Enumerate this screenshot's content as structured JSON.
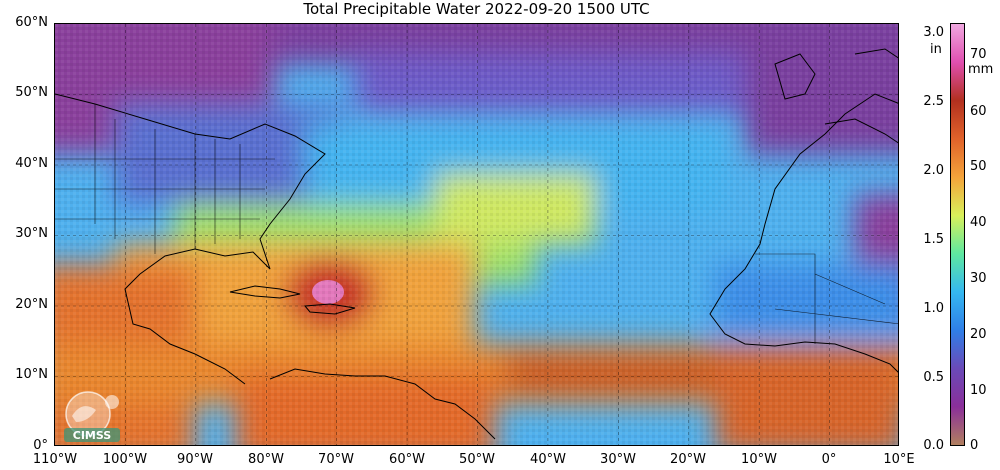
{
  "title": "Total Precipitable Water  2022-09-20 1500 UTC",
  "map": {
    "lat_labels": [
      "60°N",
      "50°N",
      "40°N",
      "30°N",
      "20°N",
      "10°N",
      "0°"
    ],
    "lon_labels": [
      "110°W",
      "100°W",
      "90°W",
      "80°W",
      "70°W",
      "60°W",
      "50°W",
      "40°W",
      "30°W",
      "20°W",
      "10°W",
      "0°",
      "10°E"
    ],
    "lat_range": [
      0,
      60
    ],
    "lon_range": [
      -110,
      10
    ],
    "gridlines": true
  },
  "colorbar": {
    "inch_ticks": [
      "3.0",
      "2.5",
      "2.0",
      "1.5",
      "1.0",
      "0.5",
      "0.0"
    ],
    "inch_unit": "in",
    "mm_ticks": [
      "70",
      "60",
      "50",
      "40",
      "30",
      "20",
      "10",
      "0"
    ],
    "mm_unit": "mm",
    "range_mm": [
      0,
      76
    ],
    "colors": [
      "#b07f5f",
      "#8a2f9a",
      "#6a4ab8",
      "#2f7fe8",
      "#35b8f0",
      "#5ee8a0",
      "#d9f05a",
      "#f4a33a",
      "#e0622a",
      "#b2301f",
      "#e04fb0",
      "#f0a8e0"
    ]
  },
  "logo": {
    "text": "CIMSS"
  }
}
